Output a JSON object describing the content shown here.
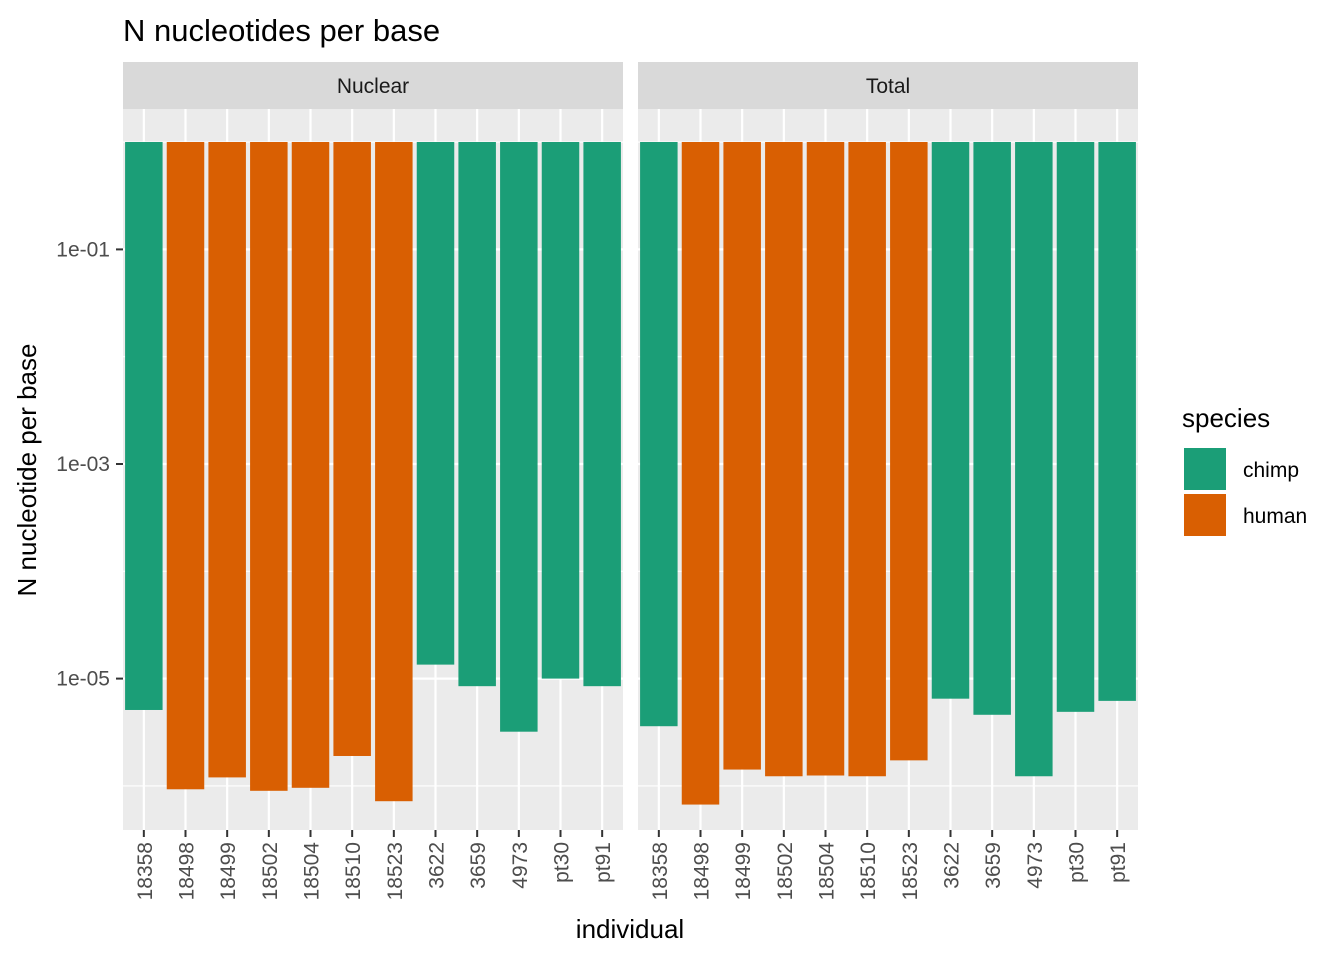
{
  "chart_data": {
    "type": "bar",
    "title": "N nucleotides per base",
    "xlabel": "individual",
    "ylabel": "N nucleotide per base",
    "y_scale": "log10",
    "y_ticks": [
      {
        "value": 0.1,
        "label": "1e-01"
      },
      {
        "value": 0.001,
        "label": "1e-03"
      },
      {
        "value": 1e-05,
        "label": "1e-05"
      }
    ],
    "grid": true,
    "legend": {
      "title": "species",
      "position": "right",
      "entries": [
        {
          "name": "chimp",
          "color": "#1B9E77"
        },
        {
          "name": "human",
          "color": "#D95F02"
        }
      ]
    },
    "categories": [
      "18358",
      "18498",
      "18499",
      "18502",
      "18504",
      "18510",
      "18523",
      "3622",
      "3659",
      "4973",
      "pt30",
      "pt91"
    ],
    "species": [
      "chimp",
      "human",
      "human",
      "human",
      "human",
      "human",
      "human",
      "chimp",
      "chimp",
      "chimp",
      "chimp",
      "chimp"
    ],
    "panels": [
      {
        "name": "Nuclear",
        "values": [
          5.1e-06,
          9.3e-07,
          1.2e-06,
          9e-07,
          9.6e-07,
          1.9e-06,
          7.2e-07,
          1.35e-05,
          8.5e-06,
          3.2e-06,
          1e-05,
          8.5e-06
        ]
      },
      {
        "name": "Total",
        "values": [
          3.6e-06,
          6.7e-07,
          1.42e-06,
          1.23e-06,
          1.25e-06,
          1.23e-06,
          1.73e-06,
          6.5e-06,
          4.6e-06,
          1.23e-06,
          4.9e-06,
          6.2e-06
        ]
      }
    ]
  }
}
